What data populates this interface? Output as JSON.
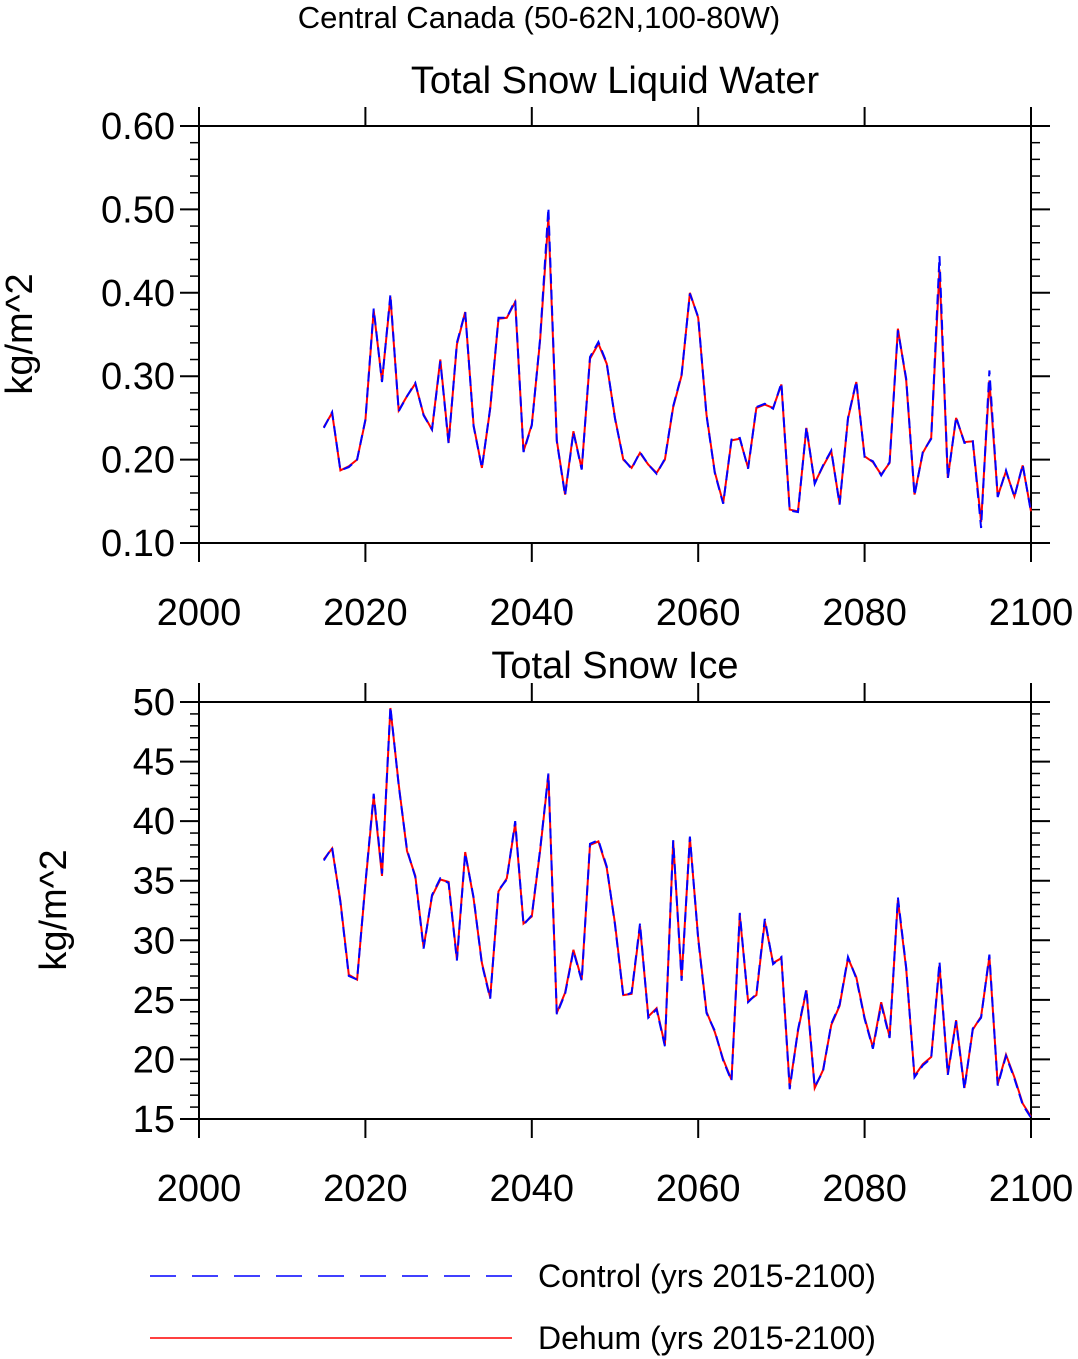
{
  "figure_title": "Central Canada (50-62N,100-80W)",
  "legend": {
    "entries": [
      {
        "label": "Control (yrs 2015-2100)",
        "color": "#0000ff",
        "style": "dashed"
      },
      {
        "label": "Dehum (yrs 2015-2100)",
        "color": "#ff0000",
        "style": "solid"
      }
    ]
  },
  "chart_data": [
    {
      "type": "line",
      "title": "Total Snow Liquid Water",
      "xlabel": "",
      "ylabel": "kg/m^2",
      "xlim": [
        2000,
        2100
      ],
      "ylim": [
        0.1,
        0.6
      ],
      "xticks": [
        2000,
        2020,
        2040,
        2060,
        2080,
        2100
      ],
      "xtick_labels": [
        "2000",
        "2020",
        "2040",
        "2060",
        "2080",
        "2100"
      ],
      "yticks": [
        0.1,
        0.2,
        0.3,
        0.4,
        0.5,
        0.6
      ],
      "ytick_labels": [
        "0.10",
        "0.20",
        "0.30",
        "0.40",
        "0.50",
        "0.60"
      ],
      "grid": false,
      "x": [
        2015,
        2016,
        2017,
        2018,
        2019,
        2020,
        2021,
        2022,
        2023,
        2024,
        2025,
        2026,
        2027,
        2028,
        2029,
        2030,
        2031,
        2032,
        2033,
        2034,
        2035,
        2036,
        2037,
        2038,
        2039,
        2040,
        2041,
        2042,
        2043,
        2044,
        2045,
        2046,
        2047,
        2048,
        2049,
        2050,
        2051,
        2052,
        2053,
        2054,
        2055,
        2056,
        2057,
        2058,
        2059,
        2060,
        2061,
        2062,
        2063,
        2064,
        2065,
        2066,
        2067,
        2068,
        2069,
        2070,
        2071,
        2072,
        2073,
        2074,
        2075,
        2076,
        2077,
        2078,
        2079,
        2080,
        2081,
        2082,
        2083,
        2084,
        2085,
        2086,
        2087,
        2088,
        2089,
        2090,
        2091,
        2092,
        2093,
        2094,
        2095,
        2096,
        2097,
        2098,
        2099,
        2100
      ],
      "series": [
        {
          "name": "Control (yrs 2015-2100)",
          "color": "#0000ff",
          "style": "dashed",
          "values": [
            0.238,
            0.257,
            0.187,
            0.191,
            0.2,
            0.248,
            0.381,
            0.293,
            0.398,
            0.258,
            0.276,
            0.292,
            0.253,
            0.236,
            0.318,
            0.219,
            0.34,
            0.377,
            0.24,
            0.19,
            0.262,
            0.37,
            0.37,
            0.391,
            0.209,
            0.241,
            0.345,
            0.502,
            0.222,
            0.157,
            0.233,
            0.188,
            0.323,
            0.341,
            0.316,
            0.249,
            0.201,
            0.189,
            0.209,
            0.194,
            0.183,
            0.201,
            0.264,
            0.302,
            0.399,
            0.371,
            0.253,
            0.184,
            0.147,
            0.224,
            0.226,
            0.189,
            0.263,
            0.267,
            0.261,
            0.292,
            0.139,
            0.137,
            0.239,
            0.171,
            0.193,
            0.211,
            0.146,
            0.25,
            0.294,
            0.203,
            0.198,
            0.181,
            0.197,
            0.355,
            0.297,
            0.157,
            0.209,
            0.225,
            0.444,
            0.177,
            0.251,
            0.22,
            0.222,
            0.118,
            0.307,
            0.155,
            0.187,
            0.155,
            0.194,
            0.137
          ]
        },
        {
          "name": "Dehum (yrs 2015-2100)",
          "color": "#ff0000",
          "style": "solid",
          "values": [
            0.239,
            0.256,
            0.187,
            0.192,
            0.2,
            0.247,
            0.379,
            0.294,
            0.395,
            0.259,
            0.276,
            0.291,
            0.254,
            0.236,
            0.32,
            0.22,
            0.338,
            0.377,
            0.241,
            0.19,
            0.261,
            0.369,
            0.37,
            0.389,
            0.21,
            0.242,
            0.343,
            0.49,
            0.223,
            0.158,
            0.234,
            0.189,
            0.321,
            0.339,
            0.315,
            0.25,
            0.2,
            0.19,
            0.208,
            0.194,
            0.184,
            0.2,
            0.263,
            0.301,
            0.4,
            0.37,
            0.254,
            0.185,
            0.148,
            0.223,
            0.225,
            0.19,
            0.262,
            0.266,
            0.262,
            0.29,
            0.14,
            0.138,
            0.238,
            0.172,
            0.192,
            0.21,
            0.147,
            0.249,
            0.293,
            0.204,
            0.197,
            0.182,
            0.196,
            0.357,
            0.295,
            0.158,
            0.208,
            0.226,
            0.428,
            0.178,
            0.25,
            0.221,
            0.222,
            0.125,
            0.295,
            0.156,
            0.186,
            0.156,
            0.193,
            0.138
          ]
        }
      ]
    },
    {
      "type": "line",
      "title": "Total Snow Ice",
      "xlabel": "",
      "ylabel": "kg/m^2",
      "xlim": [
        2000,
        2100
      ],
      "ylim": [
        15,
        50
      ],
      "xticks": [
        2000,
        2020,
        2040,
        2060,
        2080,
        2100
      ],
      "xtick_labels": [
        "2000",
        "2020",
        "2040",
        "2060",
        "2080",
        "2100"
      ],
      "yticks": [
        15,
        20,
        25,
        30,
        35,
        40,
        45,
        50
      ],
      "ytick_labels": [
        "15",
        "20",
        "25",
        "30",
        "35",
        "40",
        "45",
        "50"
      ],
      "grid": false,
      "x": [
        2015,
        2016,
        2017,
        2018,
        2019,
        2020,
        2021,
        2022,
        2023,
        2024,
        2025,
        2026,
        2027,
        2028,
        2029,
        2030,
        2031,
        2032,
        2033,
        2034,
        2035,
        2036,
        2037,
        2038,
        2039,
        2040,
        2041,
        2042,
        2043,
        2044,
        2045,
        2046,
        2047,
        2048,
        2049,
        2050,
        2051,
        2052,
        2053,
        2054,
        2055,
        2056,
        2057,
        2058,
        2059,
        2060,
        2061,
        2062,
        2063,
        2064,
        2065,
        2066,
        2067,
        2068,
        2069,
        2070,
        2071,
        2072,
        2073,
        2074,
        2075,
        2076,
        2077,
        2078,
        2079,
        2080,
        2081,
        2082,
        2083,
        2084,
        2085,
        2086,
        2087,
        2088,
        2089,
        2090,
        2091,
        2092,
        2093,
        2094,
        2095,
        2096,
        2097,
        2098,
        2099,
        2100
      ],
      "series": [
        {
          "name": "Control (yrs 2015-2100)",
          "color": "#0000ff",
          "style": "dashed",
          "values": [
            36.7,
            37.8,
            33.2,
            27.0,
            26.7,
            34.8,
            42.3,
            35.6,
            49.6,
            43.0,
            37.6,
            35.3,
            29.3,
            33.8,
            35.2,
            34.8,
            28.3,
            37.3,
            33.6,
            28.0,
            25.1,
            34.2,
            35.1,
            40.0,
            31.3,
            32.1,
            37.6,
            44.0,
            23.8,
            25.5,
            29.1,
            26.6,
            38.1,
            38.4,
            36.2,
            31.3,
            25.3,
            25.6,
            31.4,
            23.5,
            24.2,
            21.1,
            38.4,
            26.6,
            38.7,
            30.1,
            23.9,
            22.4,
            19.9,
            18.2,
            32.3,
            24.8,
            25.5,
            31.8,
            28.0,
            28.6,
            17.5,
            22.5,
            25.9,
            17.7,
            19.0,
            23.0,
            24.6,
            28.6,
            26.8,
            23.4,
            20.9,
            24.6,
            21.8,
            33.6,
            27.7,
            18.5,
            19.5,
            20.1,
            28.2,
            18.7,
            23.2,
            17.5,
            22.6,
            23.5,
            28.8,
            17.8,
            20.3,
            18.4,
            16.2,
            15.1
          ]
        },
        {
          "name": "Dehum (yrs 2015-2100)",
          "color": "#ff0000",
          "style": "solid",
          "values": [
            36.8,
            37.7,
            33.3,
            27.1,
            26.7,
            34.7,
            42.1,
            35.4,
            49.5,
            43.1,
            37.5,
            35.4,
            29.4,
            33.7,
            35.1,
            34.9,
            28.4,
            37.4,
            33.5,
            28.1,
            25.2,
            34.1,
            35.2,
            39.8,
            31.4,
            32.0,
            37.5,
            43.9,
            23.9,
            25.6,
            29.2,
            26.7,
            38.0,
            38.3,
            36.1,
            31.4,
            25.4,
            25.5,
            31.2,
            23.6,
            24.3,
            21.2,
            38.3,
            26.8,
            38.6,
            30.2,
            24.0,
            22.3,
            20.0,
            18.3,
            32.1,
            24.9,
            25.4,
            31.6,
            28.1,
            28.5,
            17.7,
            22.4,
            25.8,
            17.6,
            19.1,
            22.9,
            24.5,
            28.5,
            26.9,
            23.5,
            21.0,
            24.8,
            21.9,
            33.4,
            27.6,
            18.6,
            19.6,
            20.2,
            27.9,
            18.8,
            23.3,
            17.6,
            22.5,
            23.6,
            28.6,
            17.9,
            20.4,
            18.5,
            16.3,
            15.2
          ]
        }
      ]
    }
  ]
}
